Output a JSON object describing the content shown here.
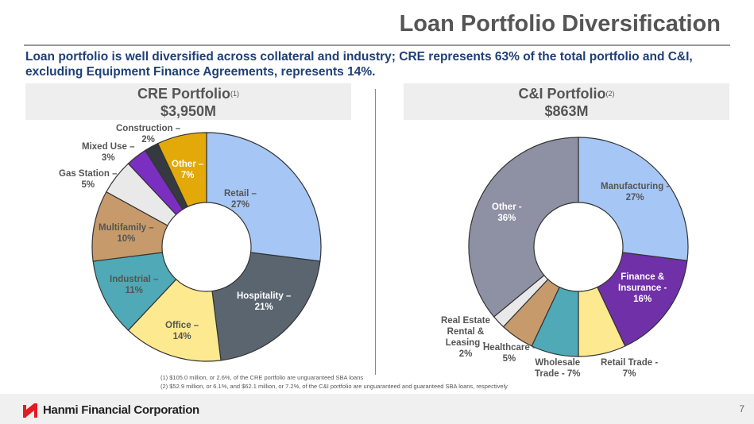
{
  "title": "Loan Portfolio Diversification",
  "subtitle": "Loan portfolio is well diversified across collateral and industry; CRE represents 63% of the total portfolio and C&I, excluding Equipment Finance Agreements, represents 14%.",
  "chart_data": [
    {
      "type": "pie",
      "title": "CRE Portfolio",
      "footnote_ref": "(1)",
      "total": "$3,950M",
      "categories": [
        "Retail",
        "Hospitality",
        "Office",
        "Industrial",
        "Multifamily",
        "Gas Station",
        "Mixed Use",
        "Construction",
        "Other"
      ],
      "values": [
        27,
        21,
        14,
        11,
        10,
        5,
        3,
        2,
        7
      ],
      "labels": [
        "Retail –\n27%",
        "Hospitality –\n21%",
        "Office –\n14%",
        "Industrial –\n11%",
        "Multifamily –\n10%",
        "Gas Station –\n5%",
        "Mixed Use –\n3%",
        "Construction –\n2%",
        "Other –\n7%"
      ],
      "colors": [
        "#a6c6f5",
        "#5b6570",
        "#fde98f",
        "#4fa9b6",
        "#c69a6a",
        "#e9e9e9",
        "#7a2fc0",
        "#353a40",
        "#e3a908"
      ]
    },
    {
      "type": "pie",
      "title": "C&I Portfolio",
      "footnote_ref": "(2)",
      "total": "$863M",
      "categories": [
        "Manufacturing",
        "Finance & Insurance",
        "Retail Trade",
        "Wholesale Trade",
        "Healthcare",
        "Real Estate Rental & Leasing",
        "Other"
      ],
      "values": [
        27,
        16,
        7,
        7,
        5,
        2,
        36
      ],
      "labels": [
        "Manufacturing -\n27%",
        "Finance &\nInsurance -\n16%",
        "Retail Trade -\n7%",
        "Wholesale\nTrade -  7%",
        "Healthcare -\n5%",
        "Real Estate\nRental &\nLeasing -\n2%",
        "Other -\n36%"
      ],
      "colors": [
        "#a6c6f5",
        "#7030a8",
        "#fde98f",
        "#4fa9b6",
        "#c69a6a",
        "#e9e9e9",
        "#8e90a4"
      ]
    }
  ],
  "footnotes": [
    "(1)   $105.0 million, or 2.6%, of the CRE portfolio are unguaranteed SBA loans",
    "(2)   $52.9 million, or 6.1%, and $62.1 million, or 7.2%, of the C&I portfolio are unguaranteed and guaranteed SBA loans, respectively"
  ],
  "footer": {
    "company": "Hanmi Financial Corporation",
    "page": "7",
    "brand_color": "#e31b23"
  }
}
